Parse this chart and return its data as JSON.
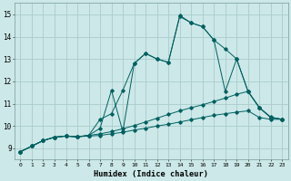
{
  "xlabel": "Humidex (Indice chaleur)",
  "background_color": "#cce8e8",
  "grid_color": "#aacccc",
  "line_color": "#006060",
  "xlim": [
    -0.5,
    23.5
  ],
  "ylim": [
    8.5,
    15.5
  ],
  "xticks": [
    0,
    1,
    2,
    3,
    4,
    5,
    6,
    7,
    8,
    9,
    10,
    11,
    12,
    13,
    14,
    15,
    16,
    17,
    18,
    19,
    20,
    21,
    22,
    23
  ],
  "yticks": [
    9,
    10,
    11,
    12,
    13,
    14,
    15
  ],
  "series": [
    {
      "x": [
        0,
        1,
        2,
        3,
        4,
        5,
        6,
        7,
        8,
        9,
        10,
        11,
        12,
        13,
        14,
        15,
        16,
        17,
        18,
        19,
        20,
        21,
        22,
        23
      ],
      "y": [
        8.85,
        9.1,
        9.35,
        9.5,
        9.55,
        9.52,
        9.55,
        9.58,
        9.65,
        9.72,
        9.82,
        9.9,
        10.0,
        10.08,
        10.18,
        10.28,
        10.38,
        10.48,
        10.55,
        10.62,
        10.68,
        10.38,
        10.3,
        10.3
      ]
    },
    {
      "x": [
        0,
        1,
        2,
        3,
        4,
        5,
        6,
        7,
        8,
        9,
        10,
        11,
        12,
        13,
        14,
        15,
        16,
        17,
        18,
        19,
        20,
        21,
        22,
        23
      ],
      "y": [
        8.85,
        9.1,
        9.35,
        9.5,
        9.55,
        9.52,
        9.58,
        9.65,
        9.75,
        9.88,
        10.02,
        10.18,
        10.35,
        10.52,
        10.68,
        10.82,
        10.95,
        11.1,
        11.25,
        11.42,
        11.55,
        10.82,
        10.4,
        10.3
      ]
    },
    {
      "x": [
        0,
        1,
        2,
        3,
        4,
        5,
        6,
        7,
        8,
        9,
        10,
        11,
        12,
        13,
        14,
        15,
        16,
        17,
        18,
        19,
        20,
        21,
        22,
        23
      ],
      "y": [
        8.85,
        9.1,
        9.35,
        9.5,
        9.55,
        9.52,
        9.58,
        9.9,
        11.6,
        9.75,
        12.8,
        13.25,
        13.0,
        12.85,
        14.9,
        14.62,
        14.45,
        13.85,
        11.55,
        13.0,
        11.55,
        10.82,
        10.38,
        10.3
      ]
    },
    {
      "x": [
        0,
        1,
        2,
        3,
        4,
        5,
        6,
        7,
        8,
        9,
        10,
        11,
        12,
        13,
        14,
        15,
        16,
        17,
        18,
        19,
        20,
        21,
        22,
        23
      ],
      "y": [
        8.85,
        9.1,
        9.35,
        9.5,
        9.55,
        9.52,
        9.58,
        10.3,
        10.55,
        11.6,
        12.8,
        13.25,
        13.0,
        12.85,
        14.95,
        14.62,
        14.45,
        13.85,
        13.45,
        13.0,
        11.55,
        10.82,
        10.38,
        10.3
      ]
    }
  ]
}
